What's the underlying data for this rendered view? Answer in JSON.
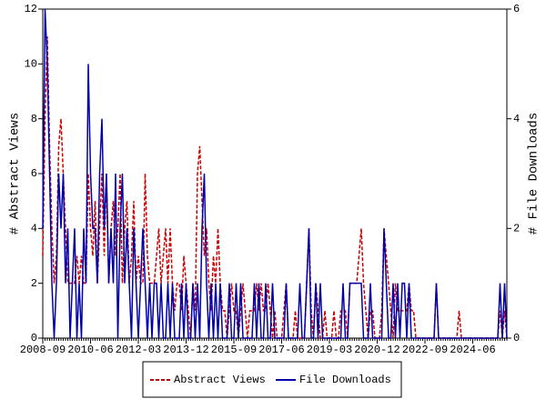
{
  "chart_data": {
    "type": "line",
    "y_label": "# Abstract Views",
    "y2_label": "# File Downloads",
    "categories": [
      "2008-09",
      null,
      null,
      null,
      null,
      null,
      null,
      null,
      null,
      null,
      null,
      null,
      null,
      null,
      null,
      null,
      null,
      null,
      null,
      null,
      null,
      "2010-06",
      null,
      null,
      null,
      null,
      null,
      null,
      null,
      null,
      null,
      null,
      null,
      null,
      null,
      null,
      null,
      null,
      null,
      null,
      null,
      null,
      "2012-03",
      null,
      null,
      null,
      null,
      null,
      null,
      null,
      null,
      null,
      null,
      null,
      null,
      null,
      null,
      null,
      null,
      null,
      null,
      null,
      null,
      "2013-12",
      null,
      null,
      null,
      null,
      null,
      null,
      null,
      null,
      null,
      null,
      null,
      null,
      null,
      null,
      null,
      null,
      null,
      null,
      null,
      null,
      "2015-09",
      null,
      null,
      null,
      null,
      null,
      null,
      null,
      null,
      null,
      null,
      null,
      null,
      null,
      null,
      null,
      null,
      null,
      null,
      null,
      null,
      "2017-06",
      null,
      null,
      null,
      null,
      null,
      null,
      null,
      null,
      null,
      null,
      null,
      null,
      null,
      null,
      null,
      null,
      null,
      null,
      null,
      null,
      "2019-03",
      null,
      null,
      null,
      null,
      null,
      null,
      null,
      null,
      null,
      null,
      null,
      null,
      null,
      null,
      null,
      null,
      null,
      null,
      null,
      null,
      "2020-12",
      null,
      null,
      null,
      null,
      null,
      null,
      null,
      null,
      null,
      null,
      null,
      null,
      null,
      null,
      null,
      null,
      null,
      null,
      null,
      null,
      "2022-09",
      null,
      null,
      null,
      null,
      null,
      null,
      null,
      null,
      null,
      null,
      null,
      null,
      null,
      null,
      null,
      null,
      null,
      null,
      null,
      null,
      "2024-06",
      null,
      null,
      null,
      null,
      null,
      null,
      null,
      null,
      null,
      null,
      null,
      null,
      null,
      null,
      null
    ],
    "series": [
      {
        "name": "Abstract Views",
        "color": "#cc0000",
        "dash": true,
        "values": [
          3,
          8,
          11,
          7,
          4,
          2,
          3,
          7,
          8,
          6,
          4,
          2,
          2,
          2,
          2,
          3,
          2,
          3,
          2,
          2,
          6,
          4,
          3,
          5,
          2,
          4,
          6,
          3,
          6,
          2,
          4,
          5,
          3,
          4,
          6,
          2,
          4,
          5,
          2,
          3,
          5,
          2,
          3,
          2,
          2,
          6,
          3,
          2,
          2,
          2,
          3,
          4,
          2,
          3,
          4,
          2,
          4,
          2,
          1,
          2,
          2,
          1,
          3,
          2,
          1,
          0,
          2,
          1,
          6,
          7,
          5,
          3,
          4,
          2,
          1,
          3,
          2,
          4,
          2,
          1,
          1,
          0,
          1,
          2,
          1,
          1,
          0,
          1,
          2,
          1,
          0,
          1,
          1,
          1,
          2,
          1,
          2,
          1,
          1,
          2,
          1,
          0,
          1,
          0,
          0,
          0,
          1,
          2,
          0,
          0,
          0,
          1,
          0,
          0,
          0,
          0,
          2,
          4,
          1,
          0,
          2,
          1,
          0,
          0,
          1,
          0,
          0,
          0,
          1,
          0,
          0,
          1,
          1,
          1,
          0,
          2,
          2,
          2,
          2,
          3,
          4,
          2,
          1,
          0,
          1,
          1,
          0,
          0,
          0,
          1,
          4,
          3,
          2,
          1,
          0,
          2,
          1,
          1,
          1,
          1,
          1,
          2,
          1,
          1,
          0,
          0,
          0,
          0,
          0,
          0,
          0,
          0,
          0,
          2,
          0,
          0,
          0,
          0,
          0,
          0,
          0,
          0,
          0,
          1,
          0,
          0,
          0,
          0,
          0,
          0,
          0,
          0,
          0,
          0,
          0,
          0,
          0,
          0,
          0,
          0,
          0,
          1,
          0,
          1,
          0
        ]
      },
      {
        "name": "File Downloads",
        "color": "#0000aa",
        "axis": "y2",
        "values": [
          2,
          6,
          5,
          3,
          1,
          0,
          1,
          3,
          2,
          3,
          1,
          2,
          0,
          1,
          2,
          0,
          1,
          0,
          2,
          1,
          5,
          3,
          2,
          2,
          1,
          3,
          4,
          2,
          3,
          1,
          2,
          1,
          3,
          0,
          2,
          3,
          1,
          2,
          1,
          0,
          2,
          1,
          0,
          1,
          2,
          1,
          0,
          1,
          0,
          1,
          1,
          0,
          1,
          0,
          0,
          1,
          0,
          1,
          0,
          0,
          0,
          1,
          0,
          1,
          0,
          0,
          1,
          0,
          1,
          0,
          2,
          3,
          1,
          0,
          1,
          0,
          1,
          0,
          1,
          0,
          0,
          0,
          1,
          0,
          0,
          1,
          0,
          1,
          0,
          0,
          0,
          0,
          0,
          1,
          0,
          1,
          0,
          0,
          1,
          0,
          0,
          1,
          0,
          0,
          0,
          0,
          0,
          1,
          0,
          0,
          0,
          0,
          0,
          1,
          0,
          0,
          1,
          2,
          0,
          0,
          1,
          0,
          1,
          0,
          0,
          0,
          0,
          0,
          0,
          0,
          0,
          0,
          1,
          0,
          0,
          1,
          1,
          1,
          1,
          1,
          1,
          0,
          0,
          0,
          1,
          0,
          0,
          0,
          0,
          0,
          2,
          1,
          0,
          0,
          1,
          0,
          1,
          0,
          1,
          1,
          0,
          1,
          0,
          0,
          0,
          0,
          0,
          0,
          0,
          0,
          0,
          0,
          0,
          1,
          0,
          0,
          0,
          0,
          0,
          0,
          0,
          0,
          0,
          0,
          0,
          0,
          0,
          0,
          0,
          0,
          0,
          0,
          0,
          0,
          0,
          0,
          0,
          0,
          0,
          0,
          0,
          1,
          0,
          1,
          0
        ]
      }
    ],
    "ylim": [
      0,
      12
    ],
    "yticks": [
      0,
      2,
      4,
      6,
      8,
      10,
      12
    ],
    "y2lim": [
      0,
      6
    ],
    "y2ticks": [
      0,
      2,
      4,
      6
    ]
  }
}
